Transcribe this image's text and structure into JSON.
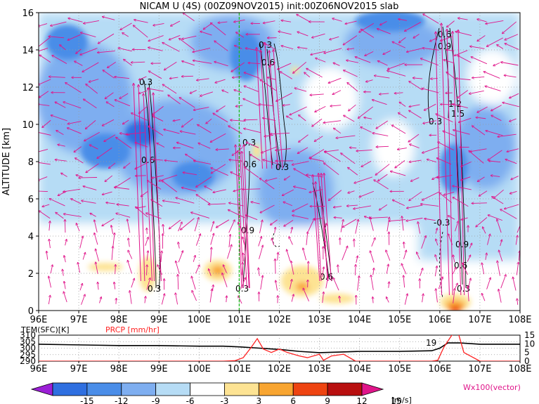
{
  "chart_data": [
    {
      "type": "heatmap",
      "title": "NICAM U (4S) (00Z09NOV2015) init:00Z06NOV2015 slab",
      "ylabel": "ALTITUDE [km]",
      "xlabel": "",
      "xlim": [
        96,
        108
      ],
      "ylim": [
        0,
        16
      ],
      "x_ticks": [
        "96E",
        "97E",
        "98E",
        "99E",
        "100E",
        "101E",
        "102E",
        "103E",
        "104E",
        "105E",
        "106E",
        "107E",
        "108E"
      ],
      "y_ticks": [
        "0",
        "2",
        "4",
        "6",
        "8",
        "10",
        "12",
        "14",
        "16"
      ],
      "grid": true,
      "shading_variable": "U wind [m/s]",
      "levels": [
        "-15",
        "-12",
        "-9",
        "-6",
        "-3",
        "3",
        "6",
        "9",
        "12",
        "15"
      ],
      "units": "[m/s]",
      "colors": [
        "#9b1fd6",
        "#2f6fe0",
        "#4a8de8",
        "#7eaef0",
        "#b6dcf5",
        "#ffffff",
        "#fde393",
        "#f8a531",
        "#ee4411",
        "#b80f0f",
        "#e0158a"
      ],
      "contour_labels": [
        "0.3",
        "0.6",
        "0.9",
        "1.2",
        "1.5",
        "-0.3"
      ],
      "vector_legend": "Wx100(vector)",
      "vector_color": "#e0158a",
      "reference_line_lon": 101,
      "reference_line_color": "#22bb22"
    },
    {
      "type": "line",
      "xlim": [
        96,
        108
      ],
      "series": [
        {
          "name": "TEM(SFC)[K]",
          "color": "#000000",
          "axis": "left",
          "ylim": [
            290,
            310
          ],
          "y_ticks": [
            "290",
            "295",
            "300",
            "305",
            "310"
          ],
          "x": [
            96,
            97,
            98,
            99,
            100,
            100.6,
            101,
            101.5,
            102,
            102.5,
            103,
            103.5,
            104,
            105,
            105.8,
            106,
            106.2,
            106.5,
            107,
            108
          ],
          "values": [
            303,
            302.5,
            302,
            302,
            301.5,
            301.5,
            301,
            300,
            299,
            297.5,
            296.5,
            297,
            297.5,
            297.5,
            298,
            300,
            304,
            304,
            303,
            303
          ]
        },
        {
          "name": "PRCP [mm/hr]",
          "color": "#ff2222",
          "axis": "right",
          "ylim": [
            0,
            15
          ],
          "y_ticks": [
            "0",
            "5",
            "10",
            "15"
          ],
          "x": [
            96,
            100.6,
            100.9,
            101.1,
            101.3,
            101.45,
            101.6,
            101.8,
            102,
            102.2,
            102.5,
            102.7,
            103,
            103.1,
            103.3,
            103.6,
            103.9,
            105.8,
            105.95,
            106.1,
            106.3,
            106.45,
            106.6,
            107,
            108
          ],
          "values": [
            0,
            0,
            0.3,
            2,
            8,
            13,
            7,
            5,
            7,
            5,
            3,
            2,
            4,
            0.5,
            3,
            4,
            0,
            0,
            0.5,
            8,
            15,
            17,
            5,
            0,
            0
          ]
        }
      ],
      "annotation": "19"
    }
  ],
  "colorbar": {
    "labels": [
      "-15",
      "-12",
      "-9",
      "-6",
      "-3",
      "3",
      "6",
      "9",
      "12",
      "15"
    ],
    "units": "[m/s]",
    "colors": [
      "#9b1fd6",
      "#2f6fe0",
      "#4a8de8",
      "#7eaef0",
      "#b6dcf5",
      "#ffffff",
      "#fde393",
      "#f8a531",
      "#ee4411",
      "#b80f0f",
      "#e0158a"
    ]
  }
}
